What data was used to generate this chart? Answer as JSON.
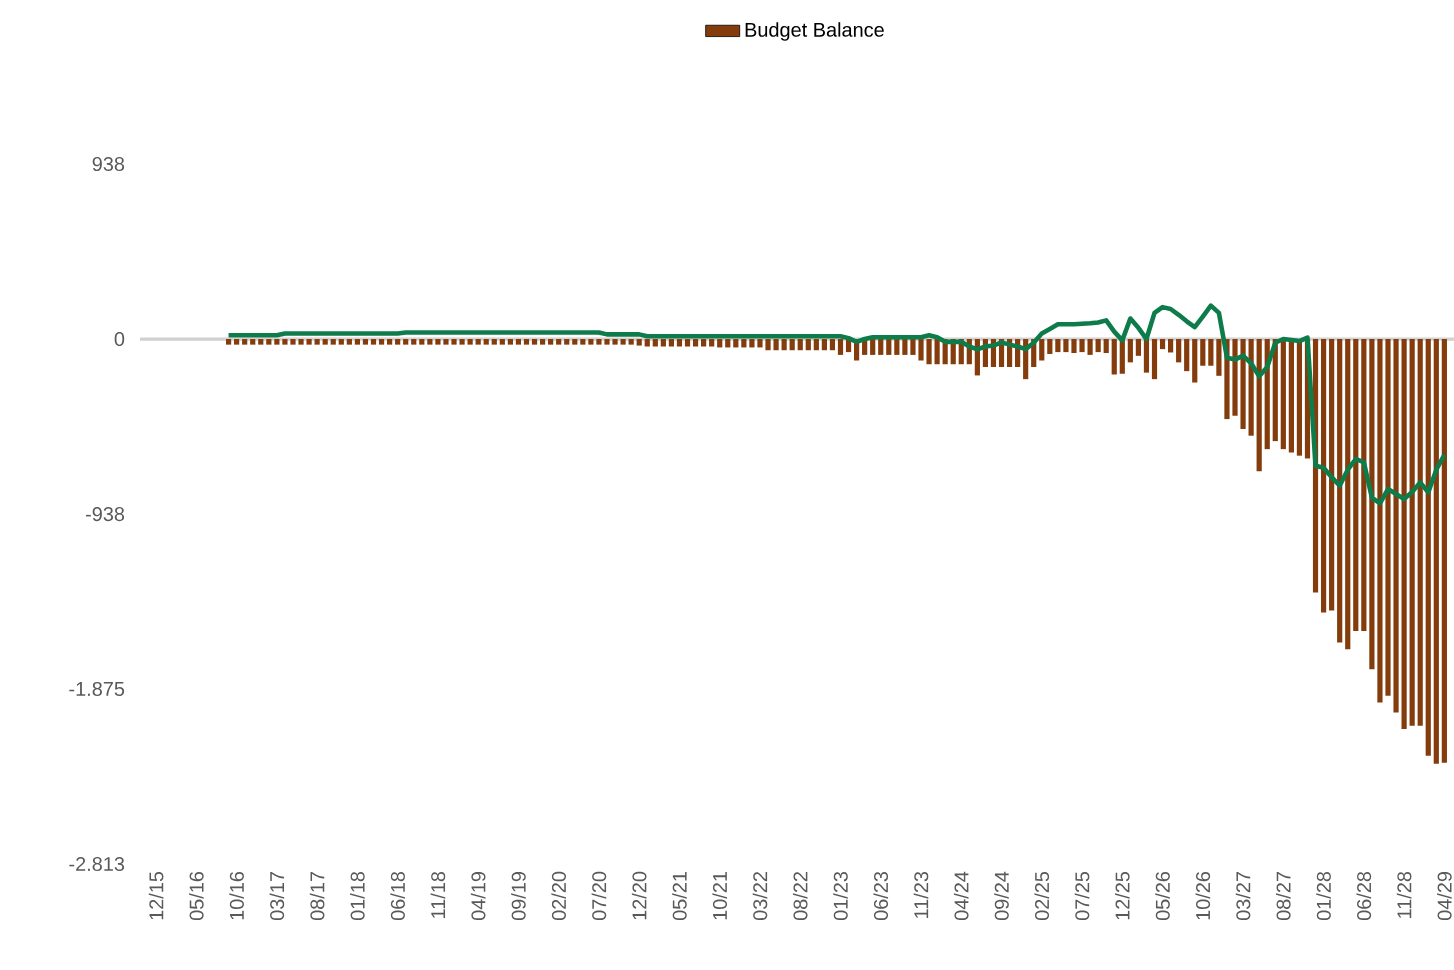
{
  "chart_data": {
    "type": "bar",
    "legend": "top",
    "categories": [
      "12/15",
      null,
      null,
      null,
      null,
      "05/16",
      null,
      null,
      null,
      null,
      "10/16",
      null,
      null,
      null,
      null,
      "03/17",
      null,
      null,
      null,
      null,
      "08/17",
      null,
      null,
      null,
      null,
      "01/18",
      null,
      null,
      null,
      null,
      "06/18",
      null,
      null,
      null,
      null,
      "11/18",
      null,
      null,
      null,
      null,
      "04/19",
      null,
      null,
      null,
      null,
      "09/19",
      null,
      null,
      null,
      null,
      "02/20",
      null,
      null,
      null,
      null,
      "07/20",
      null,
      null,
      null,
      null,
      "12/20",
      null,
      null,
      null,
      null,
      "05/21",
      null,
      null,
      null,
      null,
      "10/21",
      null,
      null,
      null,
      null,
      "03/22",
      null,
      null,
      null,
      null,
      "08/22",
      null,
      null,
      null,
      null,
      "01/23",
      null,
      null,
      null,
      null,
      "06/23",
      null,
      null,
      null,
      null,
      "11/23",
      null,
      null,
      null,
      null,
      "04/24",
      null,
      null,
      null,
      null,
      "09/24",
      null,
      null,
      null,
      null,
      "02/25",
      null,
      null,
      null,
      null,
      "07/25",
      null,
      null,
      null,
      null,
      "12/25",
      null,
      null,
      null,
      null,
      "05/26",
      null,
      null,
      null,
      null,
      "10/26",
      null,
      null,
      null,
      null,
      "03/27",
      null,
      null,
      null,
      null,
      "08/27",
      null,
      null,
      null,
      null,
      "01/28",
      null,
      null,
      null,
      null,
      "06/28",
      null,
      null,
      null,
      null,
      "11/28",
      null,
      null,
      null,
      null,
      "04/29"
    ],
    "ylim": [
      -2813,
      938
    ],
    "yticks": [
      938,
      0,
      {
        "value": -938,
        "label": "-938"
      },
      {
        "value": -1875,
        "label": "-1.875"
      },
      {
        "value": -2813,
        "label": "-2.813"
      }
    ],
    "series": [
      {
        "name": "Budget Balance",
        "color": "#843c0c",
        "values": [
          null,
          null,
          null,
          null,
          null,
          null,
          null,
          null,
          null,
          -30,
          -30,
          -30,
          -30,
          -30,
          -30,
          -30,
          -30,
          -30,
          -30,
          -30,
          -30,
          -30,
          -30,
          -30,
          -30,
          -30,
          -30,
          -30,
          -30,
          -30,
          -30,
          -30,
          -30,
          -30,
          -30,
          -30,
          -30,
          -30,
          -30,
          -30,
          -30,
          -30,
          -30,
          -30,
          -30,
          -30,
          -30,
          -30,
          -30,
          -30,
          -30,
          -30,
          -30,
          -30,
          -30,
          -30,
          -30,
          -30,
          -30,
          -30,
          -35,
          -40,
          -40,
          -40,
          -40,
          -40,
          -40,
          -40,
          -40,
          -40,
          -45,
          -45,
          -45,
          -45,
          -45,
          -45,
          -60,
          -60,
          -60,
          -60,
          -60,
          -60,
          -60,
          -60,
          -60,
          -85,
          -70,
          -115,
          -85,
          -85,
          -85,
          -85,
          -85,
          -85,
          -85,
          -115,
          -135,
          -135,
          -135,
          -135,
          -135,
          -135,
          -195,
          -150,
          -150,
          -150,
          -150,
          -150,
          -215,
          -150,
          -115,
          -80,
          -70,
          -70,
          -75,
          -70,
          -85,
          -70,
          -75,
          -190,
          -186,
          -125,
          -90,
          -180,
          -215,
          -54,
          -72,
          -125,
          -172,
          -233,
          -143,
          -143,
          -197,
          -429,
          -411,
          -482,
          -518,
          -708,
          -590,
          -547,
          -590,
          -608,
          -625,
          -640,
          -1358,
          -1465,
          -1455,
          -1626,
          -1662,
          -1565,
          -1565,
          -1769,
          -1948,
          -1912,
          -2001,
          -2090,
          -2072,
          -2072,
          -2233,
          -2276,
          -2270
        ]
      },
      {
        "type": "line",
        "color": "#0e7c4a",
        "values": [
          null,
          null,
          null,
          null,
          null,
          null,
          null,
          null,
          null,
          20,
          20,
          20,
          20,
          20,
          20,
          20,
          30,
          30,
          30,
          30,
          30,
          30,
          30,
          30,
          30,
          30,
          30,
          30,
          30,
          30,
          30,
          35,
          35,
          35,
          35,
          35,
          35,
          35,
          35,
          35,
          35,
          35,
          35,
          35,
          35,
          35,
          35,
          35,
          35,
          35,
          35,
          35,
          35,
          35,
          35,
          35,
          25,
          25,
          25,
          25,
          25,
          15,
          15,
          15,
          15,
          15,
          15,
          15,
          15,
          15,
          15,
          15,
          15,
          15,
          15,
          15,
          15,
          15,
          15,
          15,
          15,
          15,
          15,
          15,
          15,
          15,
          5,
          -15,
          0,
          10,
          10,
          10,
          10,
          10,
          10,
          10,
          20,
          10,
          -15,
          -15,
          -15,
          -40,
          -55,
          -40,
          -35,
          -18,
          -30,
          -40,
          -54,
          -20,
          30,
          54,
          79,
          79,
          79,
          82,
          85,
          89,
          100,
          40,
          -7,
          110,
          60,
          0,
          140,
          171,
          161,
          130,
          95,
          64,
          120,
          179,
          140,
          -100,
          -110,
          -89,
          -130,
          -200,
          -150,
          -20,
          0,
          -5,
          -11,
          7,
          -679,
          -690,
          -740,
          -786,
          -700,
          -643,
          -660,
          -850,
          -880,
          -804,
          -830,
          -857,
          -820,
          -768,
          -822,
          -700,
          -620
        ]
      }
    ]
  }
}
